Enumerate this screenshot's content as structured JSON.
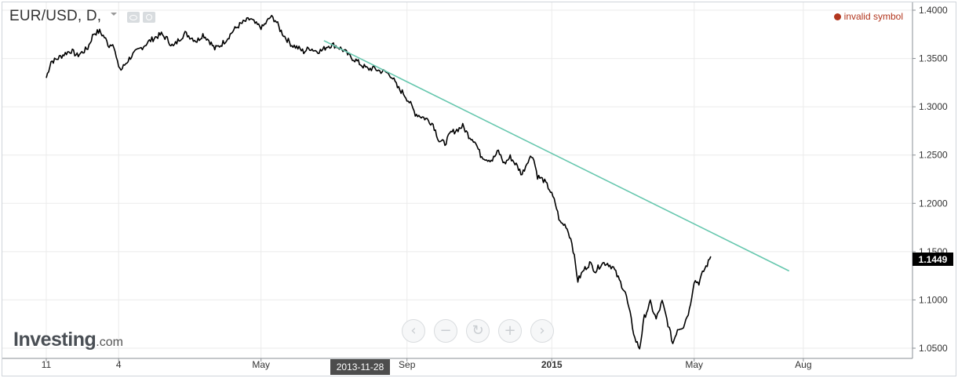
{
  "header": {
    "symbol_title": "EUR/USD, D,",
    "status_text": "invalid symbol",
    "icons": [
      "eye-icon",
      "gear-icon",
      "chevron-down-icon"
    ]
  },
  "brand": {
    "logo_main": "Investing",
    "logo_suffix": ".com"
  },
  "navigation": {
    "buttons": [
      {
        "name": "scroll-left-button",
        "glyph": "‹"
      },
      {
        "name": "zoom-out-button",
        "glyph": "−"
      },
      {
        "name": "reset-button",
        "glyph": "↻"
      },
      {
        "name": "zoom-in-button",
        "glyph": "+"
      },
      {
        "name": "scroll-right-button",
        "glyph": "›"
      }
    ]
  },
  "crosshair": {
    "date_label": "2013-11-28"
  },
  "chart_data": {
    "type": "line",
    "symbol": "EUR/USD",
    "interval": "D",
    "last_price_label": "1.1449",
    "y_ticks": [
      "1.4000",
      "1.3500",
      "1.3000",
      "1.2500",
      "1.2000",
      "1.1500",
      "1.1000",
      "1.0500"
    ],
    "ylim": [
      1.045,
      1.405
    ],
    "x_ticks": [
      "11",
      "4",
      "May",
      "Sep",
      "2015",
      "May",
      "Aug"
    ],
    "x_tick_dates": [
      "2013-11-01",
      "2014-01-01",
      "2014-05-01",
      "2014-09-01",
      "2015-01-01",
      "2015-05-01",
      "2015-08-01"
    ],
    "xlim": [
      "2013-09-25",
      "2015-11-01"
    ],
    "grid": true,
    "colors": {
      "price": "#000000",
      "trendline": "#66c7ae",
      "grid": "#ebebeb",
      "axis": "#8a8f94",
      "status": "#b2361e"
    },
    "series": [
      {
        "values": [
          [
            "2013-11-01",
            1.33
          ],
          [
            "2013-11-05",
            1.347
          ],
          [
            "2013-11-08",
            1.348
          ],
          [
            "2013-11-13",
            1.352
          ],
          [
            "2013-11-18",
            1.356
          ],
          [
            "2013-11-22",
            1.358
          ],
          [
            "2013-11-27",
            1.353
          ],
          [
            "2013-12-02",
            1.357
          ],
          [
            "2013-12-06",
            1.361
          ],
          [
            "2013-12-11",
            1.376
          ],
          [
            "2013-12-16",
            1.378
          ],
          [
            "2013-12-20",
            1.372
          ],
          [
            "2013-12-24",
            1.363
          ],
          [
            "2013-12-27",
            1.367
          ],
          [
            "2013-12-31",
            1.345
          ],
          [
            "2014-01-03",
            1.338
          ],
          [
            "2014-01-07",
            1.345
          ],
          [
            "2014-01-12",
            1.353
          ],
          [
            "2014-01-17",
            1.358
          ],
          [
            "2014-01-22",
            1.363
          ],
          [
            "2014-01-27",
            1.368
          ],
          [
            "2014-02-01",
            1.372
          ],
          [
            "2014-02-06",
            1.375
          ],
          [
            "2014-02-11",
            1.37
          ],
          [
            "2014-02-16",
            1.362
          ],
          [
            "2014-02-21",
            1.37
          ],
          [
            "2014-02-26",
            1.376
          ],
          [
            "2014-03-03",
            1.372
          ],
          [
            "2014-03-08",
            1.368
          ],
          [
            "2014-03-13",
            1.375
          ],
          [
            "2014-03-18",
            1.369
          ],
          [
            "2014-03-23",
            1.36
          ],
          [
            "2014-03-28",
            1.364
          ],
          [
            "2014-04-02",
            1.37
          ],
          [
            "2014-04-07",
            1.378
          ],
          [
            "2014-04-12",
            1.384
          ],
          [
            "2014-04-17",
            1.388
          ],
          [
            "2014-04-22",
            1.391
          ],
          [
            "2014-04-27",
            1.385
          ],
          [
            "2014-05-02",
            1.382
          ],
          [
            "2014-05-06",
            1.388
          ],
          [
            "2014-05-09",
            1.393
          ],
          [
            "2014-05-13",
            1.39
          ],
          [
            "2014-05-17",
            1.38
          ],
          [
            "2014-05-22",
            1.371
          ],
          [
            "2014-05-27",
            1.364
          ],
          [
            "2014-06-01",
            1.361
          ],
          [
            "2014-06-06",
            1.357
          ],
          [
            "2014-06-11",
            1.361
          ],
          [
            "2014-06-16",
            1.358
          ],
          [
            "2014-06-21",
            1.358
          ],
          [
            "2014-06-26",
            1.363
          ],
          [
            "2014-07-01",
            1.364
          ],
          [
            "2014-07-05",
            1.362
          ],
          [
            "2014-07-10",
            1.358
          ],
          [
            "2014-07-15",
            1.352
          ],
          [
            "2014-07-20",
            1.348
          ],
          [
            "2014-07-25",
            1.343
          ],
          [
            "2014-07-30",
            1.339
          ],
          [
            "2014-08-04",
            1.34
          ],
          [
            "2014-08-09",
            1.337
          ],
          [
            "2014-08-14",
            1.336
          ],
          [
            "2014-08-19",
            1.332
          ],
          [
            "2014-08-24",
            1.32
          ],
          [
            "2014-08-29",
            1.314
          ],
          [
            "2014-09-03",
            1.305
          ],
          [
            "2014-09-08",
            1.293
          ],
          [
            "2014-09-13",
            1.29
          ],
          [
            "2014-09-18",
            1.287
          ],
          [
            "2014-09-23",
            1.282
          ],
          [
            "2014-09-28",
            1.265
          ],
          [
            "2014-10-03",
            1.262
          ],
          [
            "2014-10-08",
            1.273
          ],
          [
            "2014-10-13",
            1.276
          ],
          [
            "2014-10-18",
            1.28
          ],
          [
            "2014-10-23",
            1.27
          ],
          [
            "2014-10-28",
            1.265
          ],
          [
            "2014-11-02",
            1.25
          ],
          [
            "2014-11-07",
            1.246
          ],
          [
            "2014-11-12",
            1.245
          ],
          [
            "2014-11-17",
            1.254
          ],
          [
            "2014-11-22",
            1.241
          ],
          [
            "2014-11-27",
            1.248
          ],
          [
            "2014-12-02",
            1.24
          ],
          [
            "2014-12-07",
            1.23
          ],
          [
            "2014-12-12",
            1.245
          ],
          [
            "2014-12-16",
            1.25
          ],
          [
            "2014-12-20",
            1.228
          ],
          [
            "2014-12-25",
            1.224
          ],
          [
            "2014-12-30",
            1.215
          ],
          [
            "2015-01-04",
            1.2
          ],
          [
            "2015-01-08",
            1.18
          ],
          [
            "2015-01-13",
            1.177
          ],
          [
            "2015-01-18",
            1.16
          ],
          [
            "2015-01-23",
            1.12
          ],
          [
            "2015-01-28",
            1.131
          ],
          [
            "2015-02-02",
            1.138
          ],
          [
            "2015-02-07",
            1.13
          ],
          [
            "2015-02-12",
            1.138
          ],
          [
            "2015-02-17",
            1.138
          ],
          [
            "2015-02-22",
            1.133
          ],
          [
            "2015-02-27",
            1.12
          ],
          [
            "2015-03-04",
            1.108
          ],
          [
            "2015-03-08",
            1.085
          ],
          [
            "2015-03-12",
            1.06
          ],
          [
            "2015-03-16",
            1.05
          ],
          [
            "2015-03-20",
            1.082
          ],
          [
            "2015-03-25",
            1.097
          ],
          [
            "2015-03-30",
            1.08
          ],
          [
            "2015-04-04",
            1.098
          ],
          [
            "2015-04-08",
            1.08
          ],
          [
            "2015-04-13",
            1.055
          ],
          [
            "2015-04-17",
            1.07
          ],
          [
            "2015-04-22",
            1.073
          ],
          [
            "2015-04-27",
            1.09
          ],
          [
            "2015-05-01",
            1.12
          ],
          [
            "2015-05-05",
            1.118
          ],
          [
            "2015-05-09",
            1.13
          ],
          [
            "2015-05-13",
            1.139
          ],
          [
            "2015-05-15",
            1.145
          ]
        ]
      }
    ],
    "trendline": {
      "start": [
        "2014-06-23",
        1.3685
      ],
      "end": [
        "2015-07-20",
        1.13
      ]
    }
  }
}
